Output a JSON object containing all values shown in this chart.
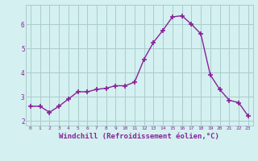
{
  "x": [
    0,
    1,
    2,
    3,
    4,
    5,
    6,
    7,
    8,
    9,
    10,
    11,
    12,
    13,
    14,
    15,
    16,
    17,
    18,
    19,
    20,
    21,
    22,
    23
  ],
  "y": [
    2.6,
    2.6,
    2.35,
    2.6,
    2.9,
    3.2,
    3.2,
    3.3,
    3.35,
    3.45,
    3.45,
    3.6,
    4.55,
    5.25,
    5.75,
    6.3,
    6.35,
    6.0,
    5.6,
    3.9,
    3.3,
    2.85,
    2.75,
    2.2
  ],
  "line_color": "#882299",
  "marker": "+",
  "marker_size": 4,
  "marker_linewidth": 1.2,
  "linewidth": 1.0,
  "xlabel": "Windchill (Refroidissement éolien,°C)",
  "xlabel_fontsize": 6.5,
  "bg_color": "#d4f0f0",
  "grid_color": "#aacccc",
  "tick_color": "#882299",
  "label_color": "#882299",
  "xlim": [
    -0.5,
    23.5
  ],
  "ylim": [
    1.8,
    6.8
  ],
  "yticks": [
    2,
    3,
    4,
    5,
    6
  ],
  "xticks": [
    0,
    1,
    2,
    3,
    4,
    5,
    6,
    7,
    8,
    9,
    10,
    11,
    12,
    13,
    14,
    15,
    16,
    17,
    18,
    19,
    20,
    21,
    22,
    23
  ]
}
